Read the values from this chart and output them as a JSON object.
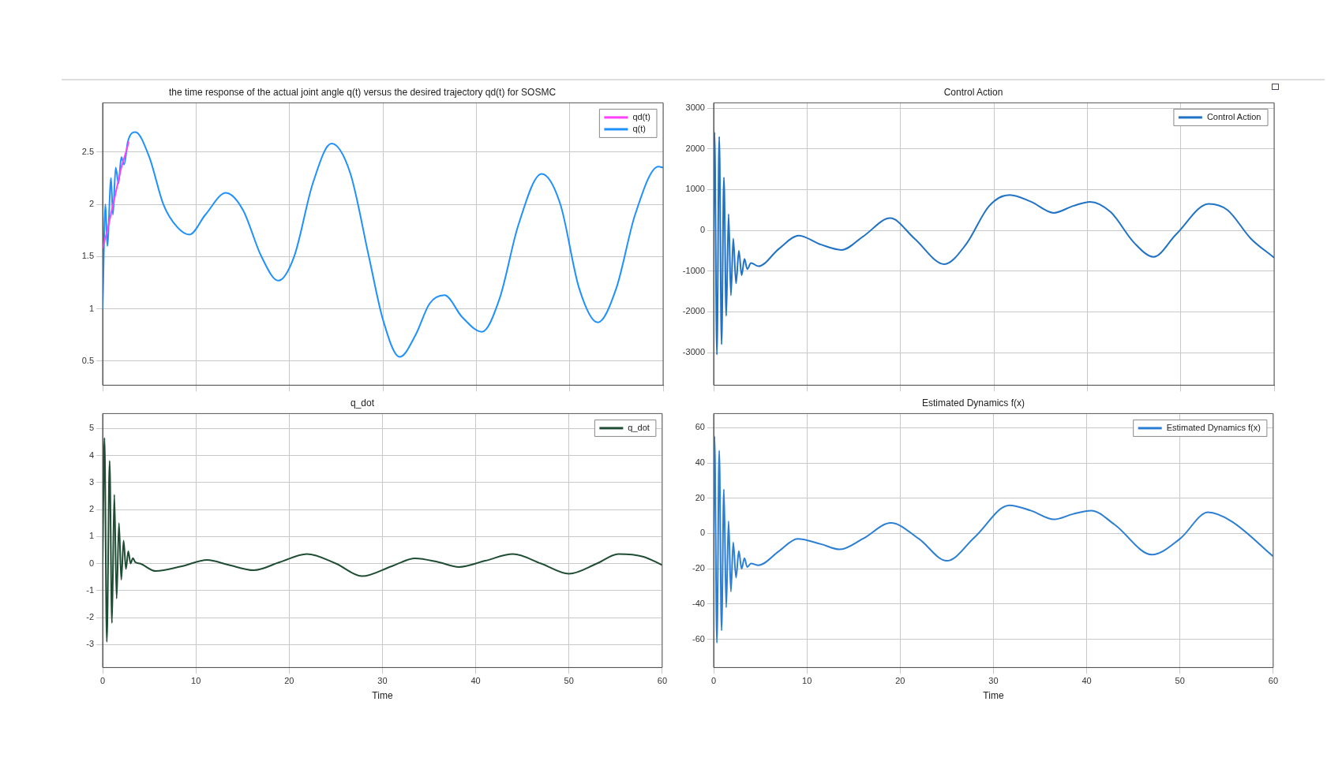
{
  "chart_data": [
    {
      "type": "line",
      "title": "the time response of the actual joint angle q(t) versus the desired trajectory qd(t) for SOSMC",
      "xlim": [
        0,
        60
      ],
      "xticks": [
        0,
        10,
        20,
        30,
        40,
        50,
        60
      ],
      "ylim": [
        0.27,
        2.97
      ],
      "yticks": [
        0.5,
        1,
        1.5,
        2,
        2.5
      ],
      "grid": true,
      "legend": "top right",
      "tick_labels": "y",
      "series": [
        {
          "name": "qd(t)",
          "color": "#ff40ff",
          "x": [
            0,
            0.5,
            1,
            1.5,
            2,
            2.5,
            2.8
          ],
          "values": [
            1.58,
            1.75,
            1.95,
            2.15,
            2.35,
            2.5,
            2.6
          ]
        },
        {
          "name": "q(t)",
          "color": "#1e90ff",
          "x": [
            0,
            0.3,
            0.5,
            0.9,
            1.1,
            1.4,
            1.7,
            2.0,
            2.3,
            2.7,
            3.5,
            5,
            6.5,
            8,
            9.3,
            11,
            13.2,
            15,
            17,
            18.8,
            20.5,
            22.5,
            24.5,
            26.5,
            28.5,
            30,
            31.8,
            33.5,
            35,
            36.6,
            38.5,
            40.6,
            42.5,
            44.5,
            47,
            49,
            51,
            53,
            55,
            57,
            59.5,
            60
          ],
          "values": [
            1,
            2.0,
            1.6,
            2.25,
            1.9,
            2.35,
            2.2,
            2.45,
            2.38,
            2.6,
            2.69,
            2.45,
            2.0,
            1.78,
            1.71,
            1.9,
            2.11,
            1.95,
            1.5,
            1.27,
            1.5,
            2.2,
            2.58,
            2.3,
            1.5,
            0.9,
            0.54,
            0.75,
            1.05,
            1.13,
            0.92,
            0.78,
            1.1,
            1.8,
            2.29,
            2.0,
            1.2,
            0.87,
            1.2,
            1.9,
            2.36,
            2.35
          ]
        }
      ]
    },
    {
      "type": "line",
      "title": "Control Action",
      "xlim": [
        0,
        60
      ],
      "xticks": [
        0,
        10,
        20,
        30,
        40,
        50,
        60
      ],
      "ylim": [
        -3800,
        3130
      ],
      "yticks": [
        -3000,
        -2000,
        -1000,
        0,
        1000,
        2000,
        3000
      ],
      "grid": true,
      "legend": "top right",
      "tick_labels": "y",
      "series": [
        {
          "name": "Control Action",
          "color": "#1f72c6",
          "x": [
            0,
            0.1,
            0.35,
            0.6,
            0.85,
            1.1,
            1.35,
            1.6,
            1.85,
            2.1,
            2.4,
            2.7,
            3.0,
            3.3,
            3.6,
            4.0,
            4.8,
            7,
            9.1,
            11.5,
            13.7,
            16,
            18.9,
            21.5,
            24.7,
            27,
            29.5,
            31.7,
            34,
            36.4,
            38.5,
            40.3,
            42.5,
            45,
            47.1,
            49.5,
            53,
            55,
            57.5,
            60
          ],
          "values": [
            0,
            2400,
            -3050,
            2300,
            -2800,
            1300,
            -2100,
            400,
            -1600,
            -200,
            -1300,
            -500,
            -1100,
            -700,
            -950,
            -800,
            -880,
            -450,
            -130,
            -350,
            -480,
            -150,
            300,
            -200,
            -830,
            -350,
            600,
            870,
            700,
            430,
            600,
            700,
            450,
            -300,
            -650,
            -100,
            650,
            500,
            -200,
            -670
          ]
        }
      ]
    },
    {
      "type": "line",
      "title": "q_dot",
      "xlabel": "Time",
      "xlim": [
        0,
        60
      ],
      "xticks": [
        0,
        10,
        20,
        30,
        40,
        50,
        60
      ],
      "ylim": [
        -3.85,
        5.55
      ],
      "yticks": [
        -3,
        -2,
        -1,
        0,
        1,
        2,
        3,
        4,
        5
      ],
      "grid": true,
      "legend": "top right",
      "series": [
        {
          "name": "q_dot",
          "color": "#1f4d33",
          "x": [
            0,
            0.2,
            0.45,
            0.75,
            1.0,
            1.25,
            1.5,
            1.75,
            2.0,
            2.25,
            2.5,
            2.75,
            3.0,
            3.25,
            3.5,
            4,
            5.7,
            8.5,
            11.2,
            13.5,
            16.2,
            19,
            21.9,
            25,
            27.8,
            31,
            33.5,
            36,
            38.2,
            41,
            44,
            47,
            50,
            53,
            55.3,
            58,
            60
          ],
          "values": [
            0,
            4.65,
            -2.9,
            3.8,
            -2.2,
            2.55,
            -1.3,
            1.5,
            -0.6,
            0.85,
            -0.2,
            0.45,
            0.0,
            0.2,
            0.05,
            0,
            -0.28,
            -0.1,
            0.13,
            -0.05,
            -0.25,
            0.05,
            0.35,
            0.0,
            -0.47,
            -0.1,
            0.19,
            0.05,
            -0.13,
            0.1,
            0.35,
            0.0,
            -0.38,
            0.0,
            0.35,
            0.25,
            -0.06
          ]
        }
      ]
    },
    {
      "type": "line",
      "title": "Estimated Dynamics f(x)",
      "xlabel": "Time",
      "xlim": [
        0,
        60
      ],
      "xticks": [
        0,
        10,
        20,
        30,
        40,
        50,
        60
      ],
      "ylim": [
        -76,
        68
      ],
      "yticks": [
        -60,
        -40,
        -20,
        0,
        20,
        40,
        60
      ],
      "grid": true,
      "legend": "top right",
      "series": [
        {
          "name": "Estimated Dynamics f(x)",
          "color": "#2a7fd4",
          "x": [
            0,
            0.1,
            0.35,
            0.6,
            0.85,
            1.1,
            1.35,
            1.6,
            1.85,
            2.1,
            2.4,
            2.7,
            3.0,
            3.3,
            3.6,
            4,
            4.8,
            7,
            9,
            11.5,
            13.5,
            16,
            19,
            22,
            25,
            28,
            31.7,
            34,
            36.5,
            38.5,
            40.5,
            43,
            47,
            50,
            53,
            55.5,
            60
          ],
          "values": [
            0,
            55,
            -62,
            47,
            -55,
            25,
            -42,
            7,
            -33,
            -5,
            -25,
            -10,
            -20,
            -14,
            -19,
            -17,
            -18,
            -10,
            -3,
            -6,
            -9,
            -3,
            6,
            -3,
            -15.5,
            -2,
            16,
            13,
            8,
            11,
            13,
            5,
            -12,
            -3,
            12,
            7,
            -13
          ]
        }
      ]
    }
  ]
}
